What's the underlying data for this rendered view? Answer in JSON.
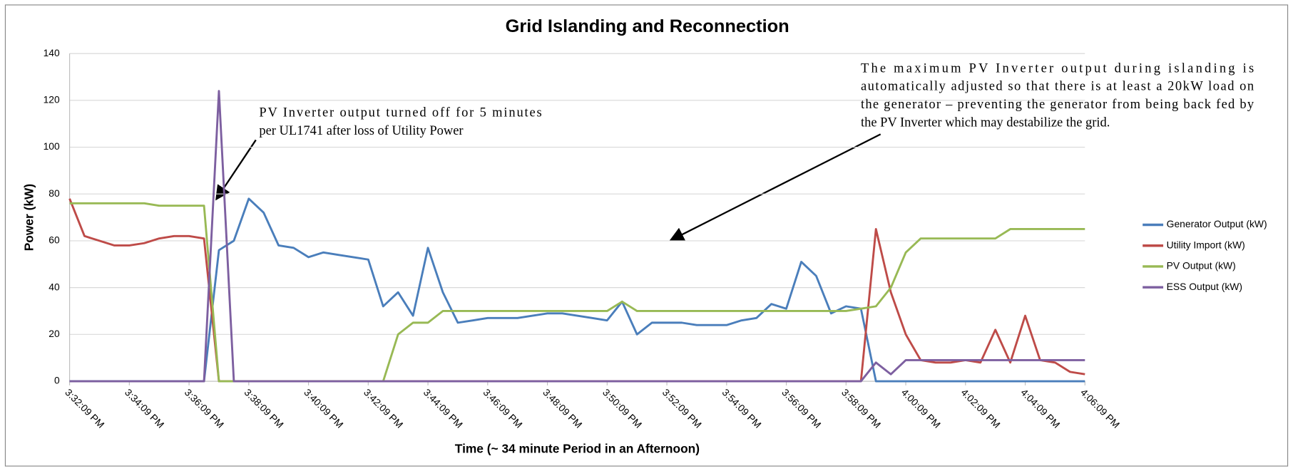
{
  "chart_data": {
    "type": "line",
    "title": "Grid Islanding and Reconnection",
    "x_label": "Time (~ 34 minute Period in an Afternoon)",
    "y_label": "Power (kW)",
    "x": [
      "3:32:09 PM",
      "3:32:39 PM",
      "3:33:09 PM",
      "3:33:39 PM",
      "3:34:09 PM",
      "3:34:39 PM",
      "3:35:09 PM",
      "3:35:39 PM",
      "3:36:09 PM",
      "3:36:39 PM",
      "3:37:09 PM",
      "3:37:39 PM",
      "3:38:09 PM",
      "3:38:39 PM",
      "3:39:09 PM",
      "3:39:39 PM",
      "3:40:09 PM",
      "3:40:39 PM",
      "3:41:09 PM",
      "3:41:39 PM",
      "3:42:09 PM",
      "3:42:39 PM",
      "3:43:09 PM",
      "3:43:39 PM",
      "3:44:09 PM",
      "3:44:39 PM",
      "3:45:09 PM",
      "3:45:39 PM",
      "3:46:09 PM",
      "3:46:39 PM",
      "3:47:09 PM",
      "3:47:39 PM",
      "3:48:09 PM",
      "3:48:39 PM",
      "3:49:09 PM",
      "3:49:39 PM",
      "3:50:09 PM",
      "3:50:39 PM",
      "3:51:09 PM",
      "3:51:39 PM",
      "3:52:09 PM",
      "3:52:39 PM",
      "3:53:09 PM",
      "3:53:39 PM",
      "3:54:09 PM",
      "3:54:39 PM",
      "3:55:09 PM",
      "3:55:39 PM",
      "3:56:09 PM",
      "3:56:39 PM",
      "3:57:09 PM",
      "3:57:39 PM",
      "3:58:09 PM",
      "3:58:39 PM",
      "3:59:09 PM",
      "3:59:39 PM",
      "4:00:09 PM",
      "4:00:39 PM",
      "4:01:09 PM",
      "4:01:39 PM",
      "4:02:09 PM",
      "4:02:39 PM",
      "4:03:09 PM",
      "4:03:39 PM",
      "4:04:09 PM",
      "4:04:39 PM",
      "4:05:09 PM",
      "4:05:39 PM",
      "4:06:09 PM"
    ],
    "series": [
      {
        "name": "Generator Output (kW)",
        "color": "#4a7ebb",
        "values": [
          0,
          0,
          0,
          0,
          0,
          0,
          0,
          0,
          0,
          0,
          56,
          60,
          78,
          72,
          58,
          57,
          53,
          55,
          54,
          53,
          52,
          32,
          38,
          28,
          57,
          38,
          25,
          26,
          27,
          27,
          27,
          28,
          29,
          29,
          28,
          27,
          26,
          34,
          20,
          25,
          25,
          25,
          24,
          24,
          24,
          26,
          27,
          33,
          31,
          51,
          45,
          29,
          32,
          31,
          0,
          0,
          0,
          0,
          0,
          0,
          0,
          0,
          0,
          0,
          0,
          0,
          0,
          0,
          0
        ]
      },
      {
        "name": "Utility Import (kW)",
        "color": "#be4b48",
        "values": [
          78,
          62,
          60,
          58,
          58,
          59,
          61,
          62,
          62,
          61,
          0,
          0,
          0,
          0,
          0,
          0,
          0,
          0,
          0,
          0,
          0,
          0,
          0,
          0,
          0,
          0,
          0,
          0,
          0,
          0,
          0,
          0,
          0,
          0,
          0,
          0,
          0,
          0,
          0,
          0,
          0,
          0,
          0,
          0,
          0,
          0,
          0,
          0,
          0,
          0,
          0,
          0,
          0,
          0,
          65,
          38,
          20,
          9,
          8,
          8,
          9,
          8,
          22,
          8,
          28,
          9,
          8,
          4,
          3
        ]
      },
      {
        "name": "PV Output (kW)",
        "color": "#98b954",
        "values": [
          76,
          76,
          76,
          76,
          76,
          76,
          75,
          75,
          75,
          75,
          0,
          0,
          0,
          0,
          0,
          0,
          0,
          0,
          0,
          0,
          0,
          0,
          20,
          25,
          25,
          30,
          30,
          30,
          30,
          30,
          30,
          30,
          30,
          30,
          30,
          30,
          30,
          34,
          30,
          30,
          30,
          30,
          30,
          30,
          30,
          30,
          30,
          30,
          30,
          30,
          30,
          30,
          30,
          31,
          32,
          40,
          55,
          61,
          61,
          61,
          61,
          61,
          61,
          65,
          65,
          65,
          65,
          65,
          65
        ]
      },
      {
        "name": "ESS Output (kW)",
        "color": "#7d5fa0",
        "values": [
          0,
          0,
          0,
          0,
          0,
          0,
          0,
          0,
          0,
          0,
          124,
          0,
          0,
          0,
          0,
          0,
          0,
          0,
          0,
          0,
          0,
          0,
          0,
          0,
          0,
          0,
          0,
          0,
          0,
          0,
          0,
          0,
          0,
          0,
          0,
          0,
          0,
          0,
          0,
          0,
          0,
          0,
          0,
          0,
          0,
          0,
          0,
          0,
          0,
          0,
          0,
          0,
          0,
          0,
          8,
          3,
          9,
          9,
          9,
          9,
          9,
          9,
          9,
          9,
          9,
          9,
          9,
          9,
          9
        ]
      }
    ],
    "xlim": [
      "3:32:09 PM",
      "4:06:09 PM"
    ],
    "xticks": [
      "3:32:09 PM",
      "3:34:09 PM",
      "3:36:09 PM",
      "3:38:09 PM",
      "3:40:09 PM",
      "3:42:09 PM",
      "3:44:09 PM",
      "3:46:09 PM",
      "3:48:09 PM",
      "3:50:09 PM",
      "3:52:09 PM",
      "3:54:09 PM",
      "3:56:09 PM",
      "3:58:09 PM",
      "4:00:09 PM",
      "4:02:09 PM",
      "4:04:09 PM",
      "4:06:09 PM"
    ],
    "ylim": [
      0,
      140
    ],
    "yticks": [
      0,
      20,
      40,
      60,
      80,
      100,
      120,
      140
    ],
    "grid": true,
    "legend": "right",
    "annotations": [
      {
        "lines": [
          "PV Inverter output turned off for 5 minutes",
          "per UL1741 after loss of Utility Power"
        ]
      },
      {
        "lines": [
          "The maximum PV Inverter output during islanding is",
          "automatically adjusted so that there is at least a 20kW load on",
          "the generator – preventing the generator from being back fed by",
          "the PV Inverter which may destabilize the grid."
        ]
      }
    ]
  }
}
